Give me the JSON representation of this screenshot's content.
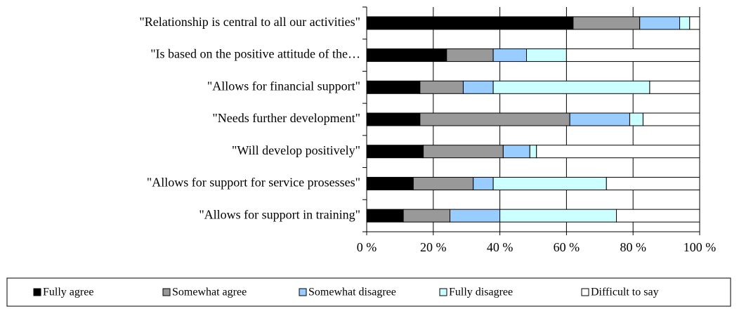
{
  "chart_data": {
    "type": "bar",
    "orientation": "horizontal",
    "stacked": true,
    "categories": [
      "\"Relationship is central to all our activities\"",
      "\"Is based on the positive attitude of the…",
      "\"Allows for financial support\"",
      "\"Needs further development\"",
      "\"Will develop positively\"",
      "\"Allows for support for service prosesses\"",
      "\"Allows for support in training\""
    ],
    "series": [
      {
        "name": "Fully agree",
        "color": "#000000",
        "values": [
          62,
          24,
          16,
          16,
          17,
          14,
          11
        ]
      },
      {
        "name": "Somewhat agree",
        "color": "#999999",
        "values": [
          20,
          14,
          13,
          45,
          24,
          18,
          14
        ]
      },
      {
        "name": "Somewhat disagree",
        "color": "#99ccff",
        "values": [
          12,
          10,
          9,
          18,
          8,
          6,
          15
        ]
      },
      {
        "name": "Fully disagree",
        "color": "#ccffff",
        "values": [
          3,
          12,
          47,
          4,
          2,
          34,
          35
        ]
      },
      {
        "name": "Difficult to say",
        "color": "#ffffff",
        "values": [
          3,
          40,
          15,
          17,
          49,
          28,
          25
        ]
      }
    ],
    "xlim": [
      0,
      100
    ],
    "xticks": [
      {
        "value": 0,
        "label": "0 %"
      },
      {
        "value": 20,
        "label": "20 %"
      },
      {
        "value": 40,
        "label": "40 %"
      },
      {
        "value": 60,
        "label": "60 %"
      },
      {
        "value": 80,
        "label": "80 %"
      },
      {
        "value": 100,
        "label": "100 %"
      }
    ],
    "grid": true,
    "legend": "bottom"
  }
}
